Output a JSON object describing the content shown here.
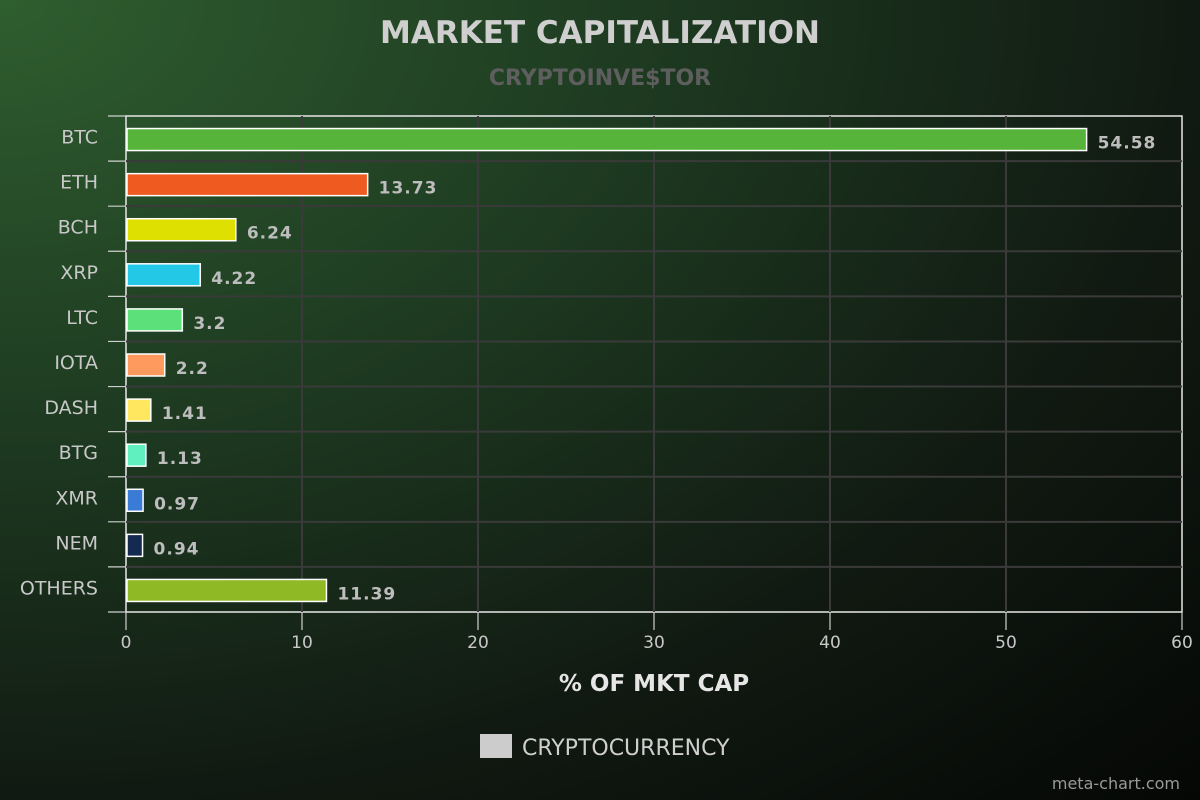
{
  "chart_data": {
    "type": "bar",
    "orientation": "horizontal",
    "title": "MARKET CAPITALIZATION",
    "subtitle": "CRYPTOINVE$TOR",
    "xlabel": "% OF MKT CAP",
    "ylabel": "",
    "xlim": [
      0,
      60
    ],
    "x_ticks": [
      0,
      10,
      20,
      30,
      40,
      50,
      60
    ],
    "grid": true,
    "legend_position": "bottom-center",
    "categories": [
      "BTC",
      "ETH",
      "BCH",
      "XRP",
      "LTC",
      "IOTA",
      "DASH",
      "BTG",
      "XMR",
      "NEM",
      "OTHERS"
    ],
    "values": [
      54.58,
      13.73,
      6.24,
      4.22,
      3.2,
      2.2,
      1.41,
      1.13,
      0.97,
      0.94,
      11.39
    ],
    "value_labels": [
      "54.58",
      "13.73",
      "6.24",
      "4.22",
      "3.2",
      "2.2",
      "1.41",
      "1.13",
      "0.97",
      "0.94",
      "11.39"
    ],
    "colors": [
      "#56b43a",
      "#ef5a20",
      "#dde000",
      "#22c8e6",
      "#5ce07a",
      "#ff9a5e",
      "#ffe860",
      "#60f0c0",
      "#3a7bd5",
      "#152a50",
      "#8fba26"
    ],
    "series": [
      {
        "name": "CRYPTOCURRENCY",
        "values": [
          54.58,
          13.73,
          6.24,
          4.22,
          3.2,
          2.2,
          1.41,
          1.13,
          0.97,
          0.94,
          11.39
        ]
      }
    ],
    "legend": {
      "label": "CRYPTOCURRENCY",
      "swatch_color": "#cccccc"
    }
  },
  "credit": "meta-chart.com"
}
